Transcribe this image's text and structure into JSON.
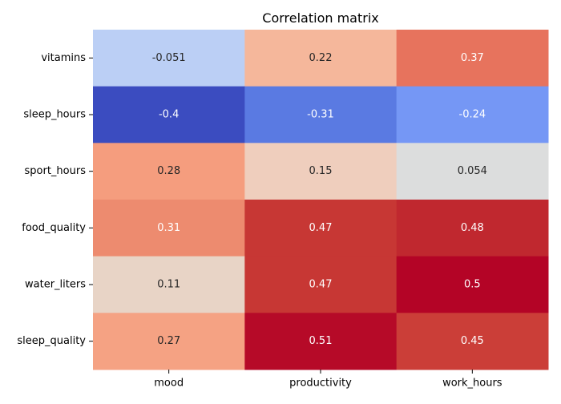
{
  "chart_data": {
    "type": "heatmap",
    "title": "Correlation matrix",
    "xlabel": "",
    "ylabel": "",
    "colormap": "coolwarm",
    "color_range": [
      -0.4,
      0.51
    ],
    "colorbar": false,
    "grid": false,
    "columns": [
      "mood",
      "productivity",
      "work_hours"
    ],
    "rows": [
      "vitamins",
      "sleep_hours",
      "sport_hours",
      "food_quality",
      "water_liters",
      "sleep_quality"
    ],
    "values": [
      [
        -0.051,
        0.22,
        0.37
      ],
      [
        -0.4,
        -0.31,
        -0.24
      ],
      [
        0.28,
        0.15,
        0.054
      ],
      [
        0.31,
        0.47,
        0.48
      ],
      [
        0.11,
        0.47,
        0.5
      ],
      [
        0.27,
        0.51,
        0.45
      ]
    ],
    "labels": [
      [
        "-0.051",
        "0.22",
        "0.37"
      ],
      [
        "-0.4",
        "-0.31",
        "-0.24"
      ],
      [
        "0.28",
        "0.15",
        "0.054"
      ],
      [
        "0.31",
        "0.47",
        "0.48"
      ],
      [
        "0.11",
        "0.47",
        "0.5"
      ],
      [
        "0.27",
        "0.51",
        "0.45"
      ]
    ],
    "cell_colors": [
      [
        "#bbcff5",
        "#f5b79b",
        "#e7735d"
      ],
      [
        "#3b4cc0",
        "#5a7ae2",
        "#7597f5"
      ],
      [
        "#f59d7e",
        "#efcebd",
        "#dcdddd"
      ],
      [
        "#ed8b6f",
        "#c73734",
        "#c0282f"
      ],
      [
        "#e8d4c6",
        "#c73734",
        "#b40426"
      ],
      [
        "#f5a283",
        "#b60a28",
        "#cb3e38"
      ]
    ],
    "label_colors": [
      [
        "#262626",
        "#262626",
        "#ffffff"
      ],
      [
        "#ffffff",
        "#ffffff",
        "#ffffff"
      ],
      [
        "#262626",
        "#262626",
        "#262626"
      ],
      [
        "#ffffff",
        "#ffffff",
        "#ffffff"
      ],
      [
        "#262626",
        "#ffffff",
        "#ffffff"
      ],
      [
        "#262626",
        "#ffffff",
        "#ffffff"
      ]
    ],
    "axis_text_color": "#000000"
  }
}
